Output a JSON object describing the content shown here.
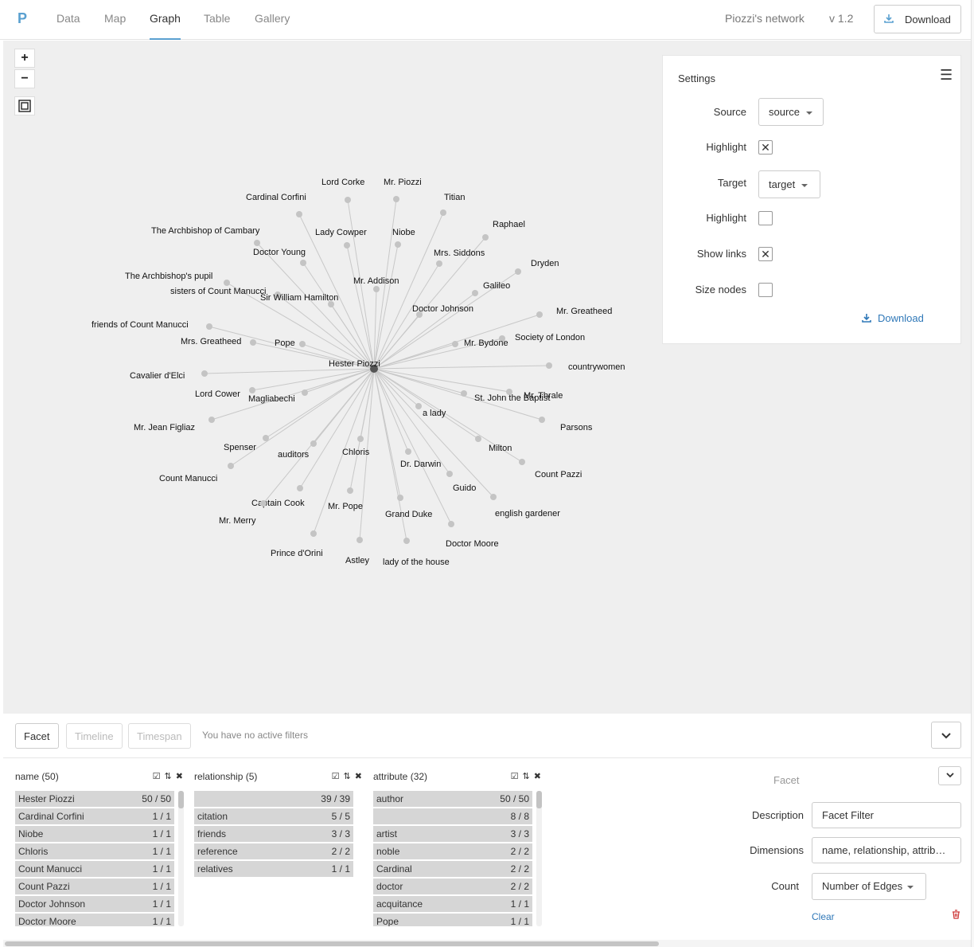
{
  "app": {
    "brand": "P",
    "nav": [
      {
        "label": "Data",
        "active": false
      },
      {
        "label": "Map",
        "active": false
      },
      {
        "label": "Graph",
        "active": true
      },
      {
        "label": "Table",
        "active": false
      },
      {
        "label": "Gallery",
        "active": false
      }
    ],
    "project_title": "Piozzi's network",
    "version": "v 1.2",
    "download_label": "Download"
  },
  "zoom": {
    "in": "+",
    "out": "−",
    "fit_icon": "fit-icon"
  },
  "graph": {
    "center": "Hester Piozzi",
    "nodes": [
      "Lord Corke",
      "Mr. Piozzi",
      "Cardinal Corfini",
      "Titian",
      "The Archbishop of Cambary",
      "Raphael",
      "Lady Cowper",
      "Niobe",
      "Doctor Young",
      "Mrs. Siddons",
      "Dryden",
      "The Archbishop's pupil",
      "Mr. Addison",
      "sisters of Count Manucci",
      "Galileo",
      "Sir William Hamilton",
      "Doctor Johnson",
      "Mr. Greatheed",
      "friends of Count Manucci",
      "Society of London",
      "Mrs. Greatheed",
      "Pope",
      "Mr. Bydone",
      "countrywomen",
      "Cavalier d'Elci",
      "Lord Cower",
      "Magliabechi",
      "Mr. Thrale",
      "St. John the Baptist",
      "a lady",
      "Mr. Jean Figliaz",
      "Parsons",
      "Spenser",
      "auditors",
      "Chloris",
      "Milton",
      "Dr. Darwin",
      "Count Manucci",
      "Count Pazzi",
      "Guido",
      "Captain Cook",
      "Mr. Pope",
      "english gardener",
      "Mr. Merry",
      "Grand Duke",
      "Doctor Moore",
      "Prince d'Orini",
      "Astley",
      "lady of the house"
    ]
  },
  "settings": {
    "title": "Settings",
    "source_label": "Source",
    "source_value": "source",
    "highlight1_label": "Highlight",
    "highlight1_checked": true,
    "target_label": "Target",
    "target_value": "target",
    "highlight2_label": "Highlight",
    "highlight2_checked": false,
    "show_links_label": "Show links",
    "show_links_checked": true,
    "size_nodes_label": "Size nodes",
    "size_nodes_checked": false,
    "download_label": "Download"
  },
  "filters": {
    "tabs": [
      "Facet",
      "Timeline",
      "Timespan"
    ],
    "status": "You have no active filters",
    "dimensions": [
      {
        "title": "name (50)",
        "rows": [
          {
            "k": "Hester Piozzi",
            "v": "50 / 50"
          },
          {
            "k": "Cardinal Corfini",
            "v": "1 / 1"
          },
          {
            "k": "Niobe",
            "v": "1 / 1"
          },
          {
            "k": "Chloris",
            "v": "1 / 1"
          },
          {
            "k": "Count Manucci",
            "v": "1 / 1"
          },
          {
            "k": "Count Pazzi",
            "v": "1 / 1"
          },
          {
            "k": "Doctor Johnson",
            "v": "1 / 1"
          },
          {
            "k": "Doctor Moore",
            "v": "1 / 1"
          }
        ]
      },
      {
        "title": "relationship (5)",
        "rows": [
          {
            "k": "",
            "v": "39 / 39"
          },
          {
            "k": "citation",
            "v": "5 / 5"
          },
          {
            "k": "friends",
            "v": "3 / 3"
          },
          {
            "k": "reference",
            "v": "2 / 2"
          },
          {
            "k": "relatives",
            "v": "1 / 1"
          }
        ]
      },
      {
        "title": "attribute (32)",
        "rows": [
          {
            "k": "author",
            "v": "50 / 50"
          },
          {
            "k": "",
            "v": "8 / 8"
          },
          {
            "k": "artist",
            "v": "3 / 3"
          },
          {
            "k": "noble",
            "v": "2 / 2"
          },
          {
            "k": "Cardinal",
            "v": "2 / 2"
          },
          {
            "k": "doctor",
            "v": "2 / 2"
          },
          {
            "k": "acquitance",
            "v": "1 / 1"
          },
          {
            "k": "Pope",
            "v": "1 / 1"
          }
        ]
      }
    ],
    "facet": {
      "title": "Facet",
      "description_label": "Description",
      "description_value": "Facet Filter",
      "dimensions_label": "Dimensions",
      "dimensions_value": "name, relationship, attrib…",
      "count_label": "Count",
      "count_value": "Number of Edges",
      "clear_label": "Clear"
    }
  },
  "colors": {
    "accent": "#5aa0d0",
    "link": "#2f78b8",
    "node": "#c4c4c4",
    "center_node": "#555555",
    "edge": "#c8c8c8"
  }
}
